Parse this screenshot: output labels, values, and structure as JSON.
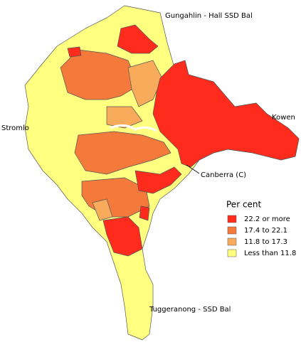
{
  "labels": {
    "north": "Gungahlin - Hall SSD Bal",
    "west": "Stromlo",
    "east": "Kowen",
    "city": "Canberra (C)",
    "south": "Tuggeranong - SSD Bal"
  },
  "legend": {
    "title": "Per cent",
    "items": [
      {
        "label": "22.2 or more",
        "color": "#ff2b1c"
      },
      {
        "label": "17.4 to 22.1",
        "color": "#f47a3c"
      },
      {
        "label": "11.8 to 17.3",
        "color": "#f9ab5c"
      },
      {
        "label": "Less than 11.8",
        "color": "#ffff80"
      }
    ]
  }
}
